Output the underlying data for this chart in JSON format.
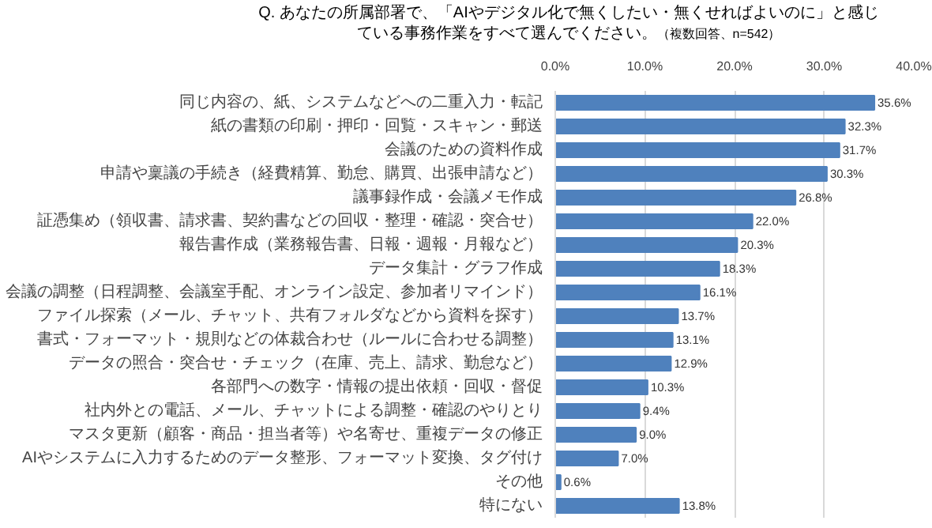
{
  "chart_data": {
    "type": "bar",
    "orientation": "horizontal",
    "title": "Q. あなたの所属部署で、「AIやデジタル化で無くしたい・無くせればよいのに」と感じている事務作業をすべて選んでください。",
    "subtitle": "（複数回答、n=542）",
    "categories": [
      "同じ内容の、紙、システムなどへの二重入力・転記",
      "紙の書類の印刷・押印・回覧・スキャン・郵送",
      "会議のための資料作成",
      "申請や稟議の手続き（経費精算、勤怠、購買、出張申請など）",
      "議事録作成・会議メモ作成",
      "証憑集め（領収書、請求書、契約書などの回収・整理・確認・突合せ）",
      "報告書作成（業務報告書、日報・週報・月報など）",
      "データ集計・グラフ作成",
      "会議の調整（日程調整、会議室手配、オンライン設定、参加者リマインド）",
      "ファイル探索（メール、チャット、共有フォルダなどから資料を探す）",
      "書式・フォーマット・規則などの体裁合わせ（ルールに合わせる調整）",
      "データの照合・突合せ・チェック（在庫、売上、請求、勤怠など）",
      "各部門への数字・情報の提出依頼・回収・督促",
      "社内外との電話、メール、チャットによる調整・確認のやりとり",
      "マスタ更新（顧客・商品・担当者等）や名寄せ、重複データの修正",
      "AIやシステムに入力するためのデータ整形、フォーマット変換、タグ付け",
      "その他",
      "特にない"
    ],
    "values": [
      35.6,
      32.3,
      31.7,
      30.3,
      26.8,
      22.0,
      20.3,
      18.3,
      16.1,
      13.7,
      13.1,
      12.9,
      10.3,
      9.4,
      9.0,
      7.0,
      0.6,
      13.8
    ],
    "value_labels": [
      "35.6%",
      "32.3%",
      "31.7%",
      "30.3%",
      "26.8%",
      "22.0%",
      "20.3%",
      "18.3%",
      "16.1%",
      "13.7%",
      "13.1%",
      "12.9%",
      "10.3%",
      "9.4%",
      "9.0%",
      "7.0%",
      "0.6%",
      "13.8%"
    ],
    "color": "#4f81bd",
    "xlim": [
      0,
      40
    ],
    "xticks": [
      {
        "value": 0,
        "label": "0.0%"
      },
      {
        "value": 10,
        "label": "10.0%"
      },
      {
        "value": 20,
        "label": "20.0%"
      },
      {
        "value": 30,
        "label": "30.0%"
      },
      {
        "value": 40,
        "label": "40.0%"
      }
    ],
    "grid": "x"
  }
}
